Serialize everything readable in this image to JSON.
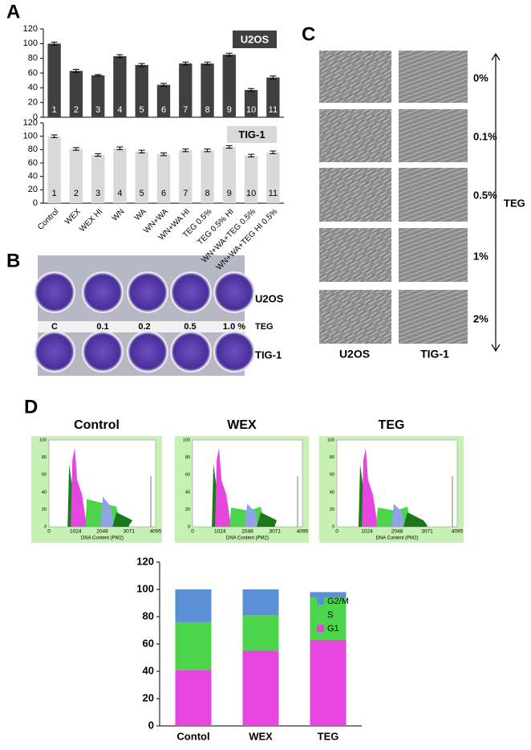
{
  "chart_data": [
    {
      "type": "bar",
      "label": "U2OS",
      "color": "#404040",
      "categories": [
        "Control",
        "WEX",
        "WEX HI",
        "WN",
        "WA",
        "WN+WA",
        "WN+WA HI",
        "TEG 0.5%",
        "TEG 0.5% HI",
        "WN+WA+TEG 0.5%",
        "WN+WA+TEG HI 0.5%"
      ],
      "values": [
        100,
        63,
        57,
        83,
        71,
        44,
        73,
        73,
        85,
        37,
        54
      ],
      "errors": [
        2,
        2,
        1,
        2,
        2,
        2,
        2,
        2,
        2,
        2,
        2
      ],
      "bar_numbers": [
        1,
        2,
        3,
        4,
        5,
        6,
        7,
        8,
        9,
        10,
        11
      ],
      "ylim": [
        0,
        120
      ],
      "yticks": [
        0,
        20,
        40,
        60,
        80,
        100,
        120
      ]
    },
    {
      "type": "bar",
      "label": "TIG-1",
      "color": "#d9d9d9",
      "categories": [
        "Control",
        "WEX",
        "WEX HI",
        "WN",
        "WA",
        "WN+WA",
        "WN+WA HI",
        "TEG 0.5%",
        "TEG 0.5% HI",
        "WN+WA+TEG 0.5%",
        "WN+WA+TEG HI 0.5%"
      ],
      "values": [
        100,
        81,
        72,
        82,
        77,
        73,
        79,
        79,
        84,
        71,
        76
      ],
      "errors": [
        2,
        2,
        2,
        2,
        2,
        2,
        2,
        2,
        2,
        2,
        2
      ],
      "bar_numbers": [
        1,
        2,
        3,
        4,
        5,
        6,
        7,
        8,
        9,
        10,
        11
      ],
      "ylim": [
        0,
        120
      ],
      "yticks": [
        0,
        20,
        40,
        60,
        80,
        100,
        120
      ]
    },
    {
      "type": "stacked_bar",
      "categories": [
        "Contol",
        "WEX",
        "TEG"
      ],
      "series": [
        {
          "name": "G1",
          "color": "#e645e0",
          "values": [
            41,
            55,
            63
          ]
        },
        {
          "name": "S",
          "color": "#4cd44c",
          "values": [
            35,
            26,
            31
          ]
        },
        {
          "name": "G2/M",
          "color": "#5b8fd6",
          "values": [
            24,
            19,
            4
          ]
        }
      ],
      "ylim": [
        0,
        120
      ],
      "yticks": [
        0,
        20,
        40,
        60,
        80,
        100,
        120
      ]
    }
  ],
  "figure": {
    "panel_labels": [
      "A",
      "B",
      "C",
      "D"
    ],
    "b": {
      "row_labels": [
        "U2OS",
        "TIG-1"
      ],
      "treatment": "TEG",
      "concentrations": [
        "C",
        "0.1",
        "0.2",
        "0.5",
        "1.0 %"
      ]
    },
    "c": {
      "concentrations": [
        "0%",
        "0.1%",
        "0.5%",
        "1%",
        "2%"
      ],
      "columns": [
        "U2OS",
        "TIG-1"
      ],
      "axis_label": "TEG"
    },
    "d": {
      "titles": [
        "Control",
        "WEX",
        "TEG"
      ],
      "xticks": [
        0,
        1024,
        2048,
        3071,
        4095
      ],
      "yticks": [
        0,
        20,
        40,
        60,
        80,
        100
      ],
      "xlabel": "DNA Content (PM2)"
    }
  }
}
